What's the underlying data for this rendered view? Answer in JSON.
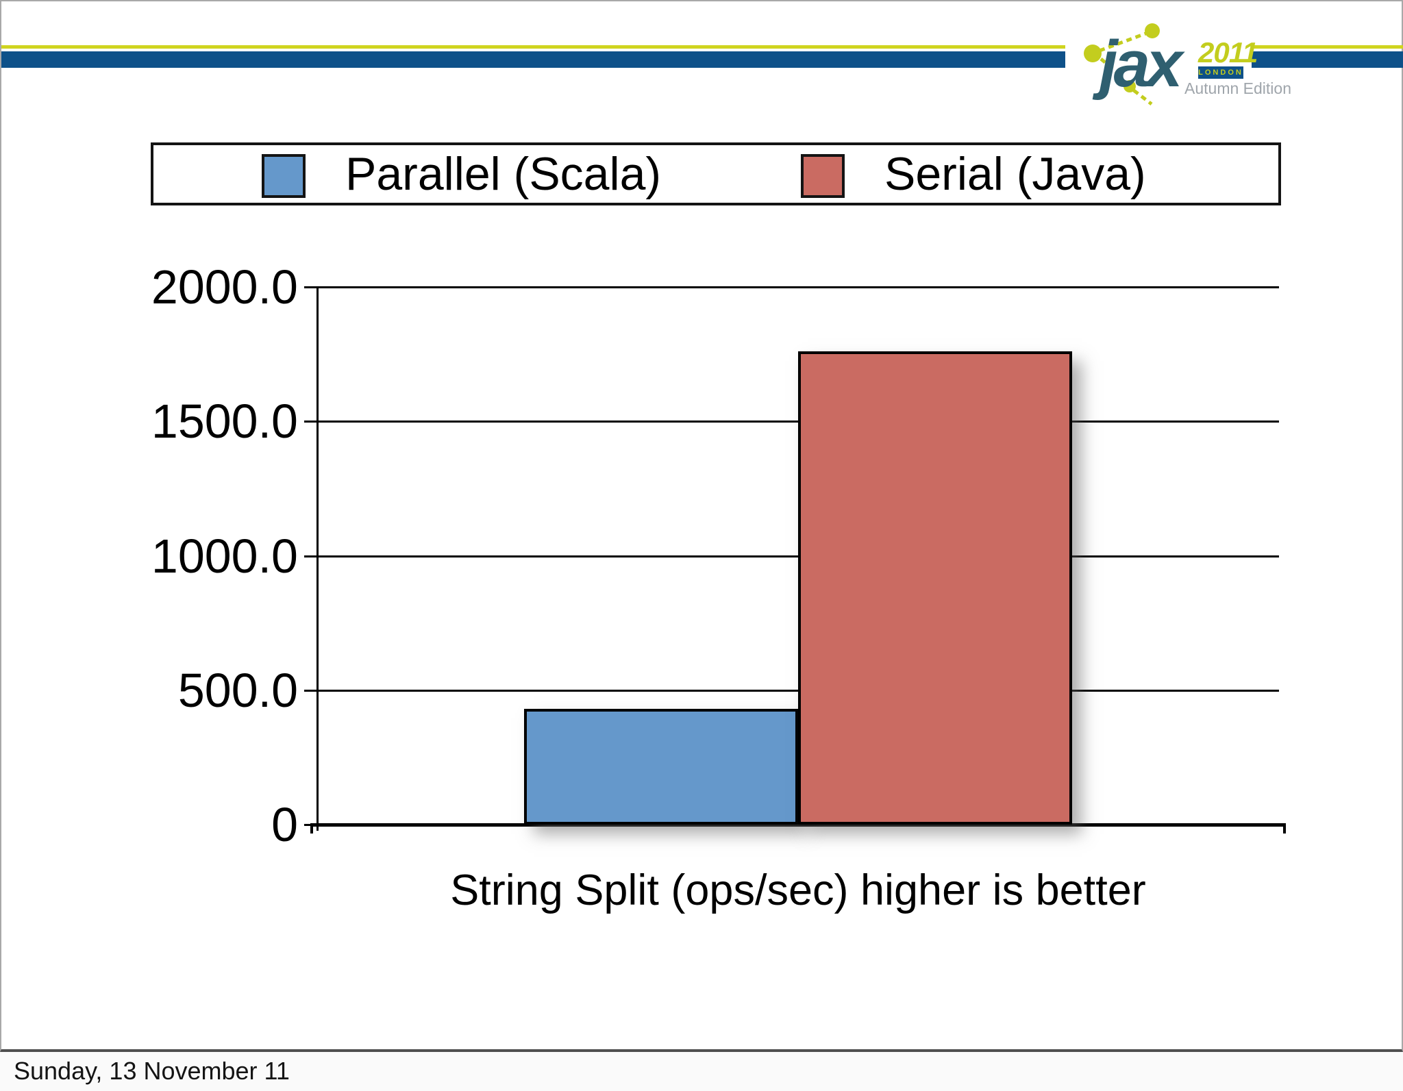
{
  "slide": {
    "footer_date": "Sunday, 13 November 11"
  },
  "logo": {
    "brand": "jax",
    "year": "2011",
    "city": "LONDON",
    "edition": "Autumn Edition"
  },
  "theme": {
    "top_line_yellow": "#CFD41F",
    "top_band_blue": "#0E5189",
    "logo_teal": "#2F5F70",
    "logo_green": "#C3CD1E",
    "logo_edition_gray": "#9FA5AB",
    "bar_blue": "#6598CB",
    "bar_red": "#CA6B62"
  },
  "chart_data": {
    "type": "bar",
    "title": "",
    "xlabel": "String Split (ops/sec) higher is better",
    "ylabel": "",
    "categories": [
      "String Split"
    ],
    "series": [
      {
        "name": "Parallel (Scala)",
        "value": 430,
        "color": "#6598CB"
      },
      {
        "name": "Serial (Java)",
        "value": 1760,
        "color": "#CA6B62"
      }
    ],
    "ylim": [
      0,
      2000
    ],
    "yticks": [
      0,
      500,
      1000,
      1500,
      2000
    ],
    "ytick_labels": [
      "0",
      "500.0",
      "1000.0",
      "1500.0",
      "2000.0"
    ],
    "grid": true,
    "legend_position": "top"
  }
}
